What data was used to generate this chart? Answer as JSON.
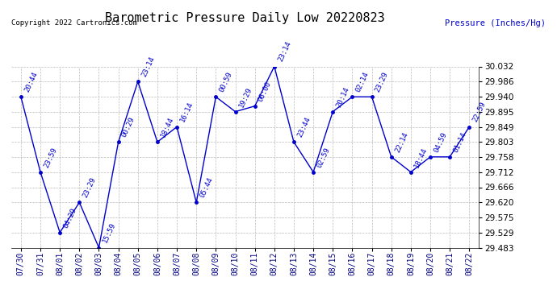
{
  "title": "Barometric Pressure Daily Low 20220823",
  "ylabel": "Pressure (Inches/Hg)",
  "copyright": "Copyright 2022 Cartronics.com",
  "ylim": [
    29.483,
    30.032
  ],
  "yticks": [
    29.483,
    29.529,
    29.575,
    29.62,
    29.666,
    29.712,
    29.758,
    29.803,
    29.849,
    29.895,
    29.94,
    29.986,
    30.032
  ],
  "dates": [
    "07/30",
    "07/31",
    "08/01",
    "08/02",
    "08/03",
    "08/04",
    "08/05",
    "08/06",
    "08/07",
    "08/08",
    "08/09",
    "08/10",
    "08/11",
    "08/12",
    "08/13",
    "08/14",
    "08/15",
    "08/16",
    "08/17",
    "08/18",
    "08/19",
    "08/20",
    "08/21",
    "08/22"
  ],
  "values": [
    29.94,
    29.712,
    29.529,
    29.62,
    29.483,
    29.803,
    29.986,
    29.803,
    29.849,
    29.62,
    29.94,
    29.895,
    29.912,
    30.032,
    29.803,
    29.712,
    29.895,
    29.94,
    29.94,
    29.758,
    29.712,
    29.758,
    29.758,
    29.849
  ],
  "annotations": [
    "20:44",
    "23:59",
    "04:29",
    "23:29",
    "15:59",
    "00:29",
    "23:14",
    "18:44",
    "16:14",
    "05:44",
    "00:59",
    "19:29",
    "06:00",
    "23:14",
    "23:44",
    "02:59",
    "20:14",
    "02:14",
    "23:29",
    "22:14",
    "18:44",
    "04:59",
    "01:14",
    "22:59"
  ],
  "line_color": "#0000cc",
  "marker_color": "#0000cc",
  "grid_color": "#bbbbbb",
  "title_fontsize": 11,
  "annotation_fontsize": 6.5,
  "background_color": "#ffffff",
  "ylabel_color": "#0000cc",
  "copyright_color": "#000000",
  "tick_label_color": "#000080",
  "ytick_fontsize": 7.5,
  "xtick_fontsize": 7.0
}
